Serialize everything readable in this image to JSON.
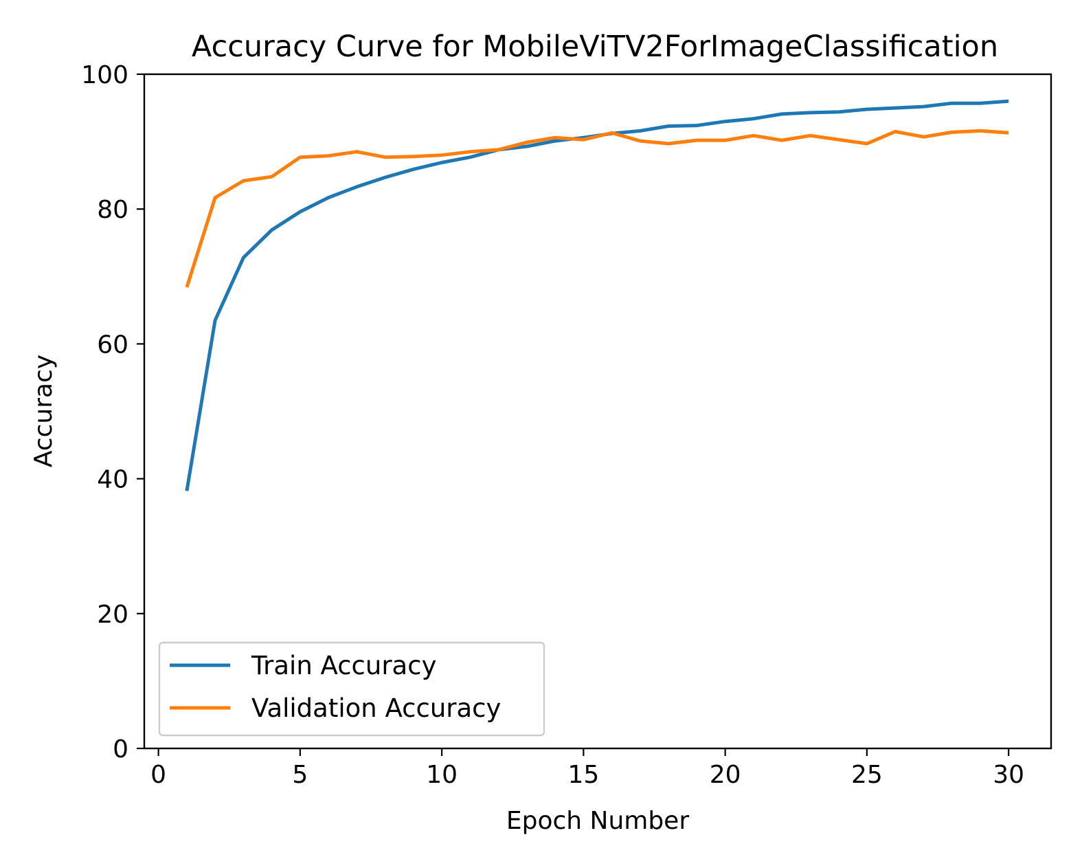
{
  "chart_data": {
    "type": "line",
    "title": "Accuracy Curve for  MobileViTV2ForImageClassification",
    "xlabel": "Epoch Number",
    "ylabel": "Accuracy",
    "xlim": [
      -0.5,
      31.5
    ],
    "ylim": [
      0,
      100
    ],
    "xticks": [
      0,
      5,
      10,
      15,
      20,
      25,
      30
    ],
    "yticks": [
      0,
      20,
      40,
      60,
      80,
      100
    ],
    "grid": false,
    "legend_position": "lower-left",
    "x": [
      1,
      2,
      3,
      4,
      5,
      6,
      7,
      8,
      9,
      10,
      11,
      12,
      13,
      14,
      15,
      16,
      17,
      18,
      19,
      20,
      21,
      22,
      23,
      24,
      25,
      26,
      27,
      28,
      29,
      30
    ],
    "series": [
      {
        "name": "Train Accuracy",
        "color": "#1f77b4",
        "values": [
          38.2,
          63.5,
          72.8,
          76.9,
          79.6,
          81.7,
          83.3,
          84.7,
          85.9,
          86.9,
          87.7,
          88.8,
          89.3,
          90.1,
          90.6,
          91.2,
          91.6,
          92.3,
          92.4,
          93.0,
          93.4,
          94.1,
          94.3,
          94.4,
          94.8,
          95.0,
          95.2,
          95.7,
          95.7,
          96.0
        ],
        "legend_label": "Train Accuracy"
      },
      {
        "name": "Validation Accuracy",
        "color": "#ff7f0e",
        "values": [
          68.4,
          81.7,
          84.2,
          84.8,
          87.7,
          87.9,
          88.5,
          87.7,
          87.8,
          88.0,
          88.5,
          88.8,
          89.9,
          90.6,
          90.3,
          91.3,
          90.1,
          89.7,
          90.2,
          90.2,
          90.9,
          90.2,
          90.9,
          90.3,
          89.7,
          91.5,
          90.7,
          91.4,
          91.6,
          91.3
        ],
        "legend_label": "Validation Accuracy"
      }
    ]
  }
}
